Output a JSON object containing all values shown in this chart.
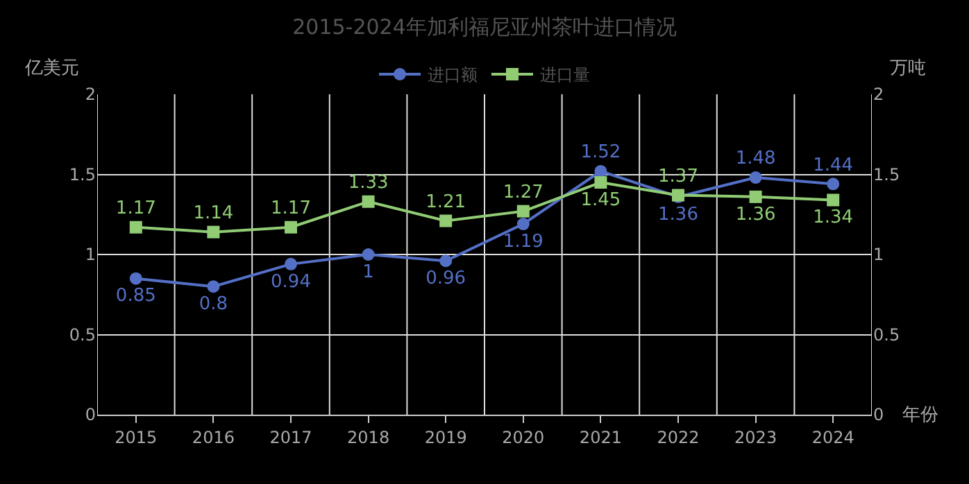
{
  "chart_data": {
    "type": "line",
    "title": "2015-2024年加利福尼亚州茶叶进口情况",
    "ylabel": "亿美元",
    "y2label": "万吨",
    "xlabel": "年份",
    "categories": [
      "2015",
      "2016",
      "2017",
      "2018",
      "2019",
      "2020",
      "2021",
      "2022",
      "2023",
      "2024"
    ],
    "series": [
      {
        "name": "进口额",
        "color": "#5470c6",
        "marker": "circle",
        "axis": "y",
        "values": [
          0.85,
          0.8,
          0.94,
          1,
          0.96,
          1.19,
          1.52,
          1.36,
          1.48,
          1.44
        ]
      },
      {
        "name": "进口量",
        "color": "#91cc75",
        "marker": "square",
        "axis": "y2",
        "values": [
          1.17,
          1.14,
          1.17,
          1.33,
          1.21,
          1.27,
          1.45,
          1.37,
          1.36,
          1.34
        ]
      }
    ],
    "ylim": [
      0,
      2
    ],
    "yticks": [
      0,
      0.5,
      1,
      1.5,
      2
    ],
    "y2lim": [
      0,
      2
    ],
    "y2ticks": [
      0,
      0.5,
      1,
      1.5,
      2
    ],
    "grid": true,
    "legend": "top",
    "data_labels": true,
    "line_style": "solid"
  }
}
